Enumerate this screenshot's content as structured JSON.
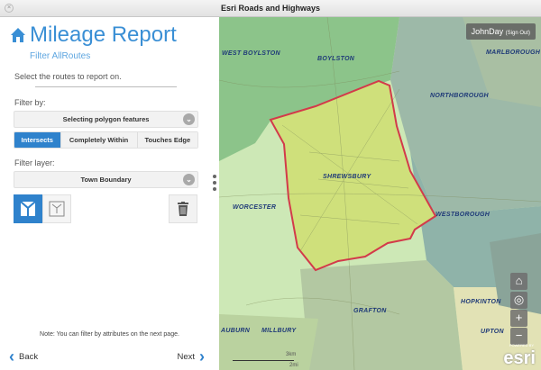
{
  "window": {
    "title": "Esri Roads and Highways"
  },
  "panel": {
    "title": "Mileage Report",
    "subtitle": "Filter AllRoutes",
    "description": "Select the routes to report on.",
    "filter_by_label": "Filter by:",
    "filter_by_value": "Selecting polygon features",
    "spatial_options": [
      {
        "label": "Intersects",
        "selected": true
      },
      {
        "label": "Completely Within",
        "selected": false
      },
      {
        "label": "Touches Edge",
        "selected": false
      }
    ],
    "filter_layer_label": "Filter layer:",
    "filter_layer_value": "Town Boundary",
    "note": "Note: You can filter by attributes on the next page.",
    "back_label": "Back",
    "next_label": "Next"
  },
  "map": {
    "user": "JohnDay",
    "sign_out": "(Sign Out)",
    "towns": [
      "WEST BOYLSTON",
      "BOYLSTON",
      "MARLBOROUGH",
      "NORTHBOROUGH",
      "SHREWSBURY",
      "WORCESTER",
      "WESTBOROUGH",
      "GRAFTON",
      "AUBURN",
      "MILLBURY",
      "HOPKINTON",
      "UPTON"
    ],
    "scale_km": "3km",
    "scale_mi": "2mi",
    "attribution_small": "POWERED BY",
    "attribution": "esri",
    "highlight_color": "#d33a4a",
    "accent": "#2f82cc"
  }
}
